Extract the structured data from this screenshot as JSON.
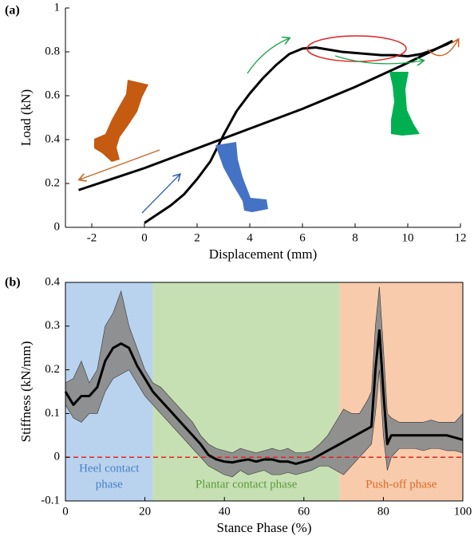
{
  "chart_data": [
    {
      "type": "line",
      "panel_label": "(a)",
      "xlabel": "Displacement (mm)",
      "ylabel": "Load (kN)",
      "xlim": [
        -3,
        12
      ],
      "xticks": [
        -2,
        0,
        2,
        4,
        6,
        8,
        10,
        12
      ],
      "ylim": [
        0,
        1
      ],
      "yticks": [
        0,
        0.2,
        0.4,
        0.6,
        0.8,
        1
      ],
      "series": [
        {
          "color": "#000000",
          "x": [
            0,
            0.5,
            1,
            1.5,
            2,
            2.5,
            3,
            3.5,
            4,
            4.5,
            5,
            5.5,
            6,
            6.5,
            7,
            7.5,
            8,
            8.5,
            9,
            9.5,
            10,
            10.5,
            11,
            11.5,
            11.7
          ],
          "values": [
            0.02,
            0.06,
            0.1,
            0.15,
            0.22,
            0.3,
            0.42,
            0.53,
            0.61,
            0.68,
            0.74,
            0.79,
            0.815,
            0.82,
            0.81,
            0.8,
            0.795,
            0.79,
            0.785,
            0.785,
            0.78,
            0.79,
            0.81,
            0.835,
            0.85
          ]
        },
        {
          "color": "#000000",
          "x": [
            -2.5,
            0,
            2,
            4,
            6,
            8,
            10,
            11.7
          ],
          "values": [
            0.17,
            0.27,
            0.36,
            0.45,
            0.54,
            0.64,
            0.75,
            0.85
          ]
        }
      ]
    },
    {
      "type": "line",
      "panel_label": "(b)",
      "xlabel": "Stance Phase (%)",
      "ylabel": "Stiffness (kN/mm)",
      "xlim": [
        0,
        100
      ],
      "xticks": [
        0,
        20,
        40,
        60,
        80,
        100
      ],
      "ylim": [
        -0.1,
        0.4
      ],
      "yticks": [
        -0.1,
        0,
        0.1,
        0.2,
        0.3,
        0.4
      ],
      "phases": [
        {
          "label": [
            "Heel contact",
            "phase"
          ],
          "start": 0,
          "end": 22,
          "color": "#b9d3ee",
          "text_color": "#4a7fc4"
        },
        {
          "label": [
            "Plantar contact phase"
          ],
          "start": 22,
          "end": 69,
          "color": "#c6e0b4",
          "text_color": "#5a9a3a"
        },
        {
          "label": [
            "Push-off phase"
          ],
          "start": 69,
          "end": 100,
          "color": "#f8cbad",
          "text_color": "#d96c25"
        }
      ],
      "reference_line": {
        "value": 0,
        "color": "#e32222"
      },
      "x": [
        0,
        2,
        4,
        6,
        8,
        10,
        12,
        14,
        16,
        18,
        20,
        22,
        24,
        26,
        28,
        30,
        32,
        34,
        36,
        38,
        40,
        42,
        44,
        46,
        48,
        50,
        52,
        54,
        56,
        58,
        60,
        62,
        64,
        66,
        68,
        70,
        72,
        74,
        76,
        77,
        78,
        79,
        80,
        81,
        82,
        84,
        86,
        88,
        90,
        92,
        94,
        96,
        98,
        100
      ],
      "band": {
        "color": "#8c8c8c",
        "upper": [
          0.17,
          0.18,
          0.22,
          0.17,
          0.2,
          0.3,
          0.33,
          0.38,
          0.3,
          0.25,
          0.2,
          0.17,
          0.16,
          0.14,
          0.12,
          0.1,
          0.08,
          0.05,
          0.03,
          0.02,
          0.015,
          0.01,
          0.02,
          0.015,
          0.01,
          0.015,
          0.02,
          0.015,
          0.02,
          0.01,
          0.01,
          0.015,
          0.03,
          0.05,
          0.08,
          0.11,
          0.1,
          0.1,
          0.13,
          0.15,
          0.3,
          0.39,
          0.25,
          0.1,
          0.09,
          0.08,
          0.08,
          0.08,
          0.08,
          0.085,
          0.08,
          0.08,
          0.08,
          0.1
        ],
        "lower": [
          0.12,
          0.09,
          0.08,
          0.1,
          0.1,
          0.15,
          0.18,
          0.19,
          0.2,
          0.17,
          0.14,
          0.12,
          0.1,
          0.08,
          0.06,
          0.04,
          0.02,
          0.0,
          -0.02,
          -0.03,
          -0.04,
          -0.045,
          -0.03,
          -0.04,
          -0.035,
          -0.03,
          -0.04,
          -0.04,
          -0.035,
          -0.04,
          -0.035,
          -0.03,
          -0.02,
          -0.02,
          -0.03,
          -0.04,
          -0.02,
          0.0,
          0.02,
          0.03,
          0.1,
          0.2,
          0.05,
          -0.03,
          0.0,
          0.02,
          0.02,
          0.02,
          0.015,
          0.02,
          0.02,
          0.015,
          0.015,
          0.01
        ]
      },
      "series": [
        {
          "color": "#000000",
          "values": [
            0.15,
            0.12,
            0.14,
            0.14,
            0.16,
            0.22,
            0.25,
            0.26,
            0.25,
            0.21,
            0.18,
            0.15,
            0.13,
            0.11,
            0.09,
            0.07,
            0.05,
            0.03,
            0.005,
            -0.005,
            -0.01,
            -0.012,
            -0.008,
            -0.005,
            -0.01,
            -0.005,
            -0.005,
            -0.01,
            -0.01,
            -0.015,
            -0.01,
            -0.005,
            0.005,
            0.015,
            0.025,
            0.035,
            0.045,
            0.055,
            0.065,
            0.07,
            0.2,
            0.29,
            0.15,
            0.03,
            0.05,
            0.05,
            0.05,
            0.05,
            0.05,
            0.05,
            0.05,
            0.05,
            0.045,
            0.04
          ]
        }
      ]
    }
  ]
}
